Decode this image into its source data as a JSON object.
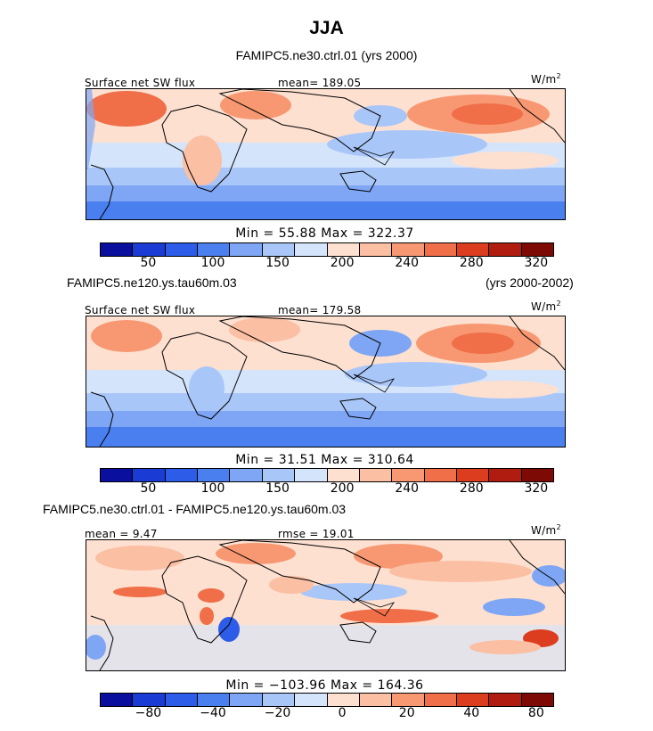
{
  "title": "JJA",
  "top_title": "FAMIPC5.ne30.ctrl.01 (yrs 2000)",
  "colors": {
    "abs_scale": [
      "#0a0f9e",
      "#1a3bd4",
      "#2c5ce8",
      "#4a7ff0",
      "#7ea6f5",
      "#a9c6f8",
      "#d4e4fb",
      "#fde0d0",
      "#fbbfa3",
      "#f79872",
      "#f06e48",
      "#db3d1e",
      "#b01d10",
      "#7d0a05"
    ],
    "diff_scale": [
      "#0a0f9e",
      "#1a3bd4",
      "#2c5ce8",
      "#4a7ff0",
      "#7ea6f5",
      "#a9c6f8",
      "#d4e4fb",
      "#fde0d0",
      "#fbbfa3",
      "#f79872",
      "#f06e48",
      "#db3d1e",
      "#b01d10",
      "#7d0a05"
    ],
    "coastline": "#000000"
  },
  "panels": [
    {
      "id": "ctrl",
      "left_label": "Surface net SW flux",
      "mean_label": "mean= 189.05",
      "units": "W/m",
      "units_sup": "2",
      "minmax": "Min =  55.88 Max = 322.37",
      "colorbar_ticks": [
        "50",
        "100",
        "150",
        "200",
        "240",
        "280",
        "320"
      ],
      "caption_left": "FAMIPC5.ne120.ys.tau60m.03",
      "caption_right": "(yrs 2000-2002)"
    },
    {
      "id": "ne120",
      "left_label": "Surface net SW flux",
      "mean_label": "mean= 179.58",
      "units": "W/m",
      "units_sup": "2",
      "minmax": "Min =  31.51 Max = 310.64",
      "colorbar_ticks": [
        "50",
        "100",
        "150",
        "200",
        "240",
        "280",
        "320"
      ],
      "caption_left": "FAMIPC5.ne30.ctrl.01 - FAMIPC5.ne120.ys.tau60m.03"
    },
    {
      "id": "diff",
      "left_label": "mean =   9.47",
      "mean_label": "rmse =  19.01",
      "units": "W/m",
      "units_sup": "2",
      "minmax": "Min = −103.96 Max = 164.36",
      "colorbar_ticks": [
        "−80",
        "−40",
        "−20",
        "0",
        "20",
        "40",
        "80"
      ]
    }
  ]
}
